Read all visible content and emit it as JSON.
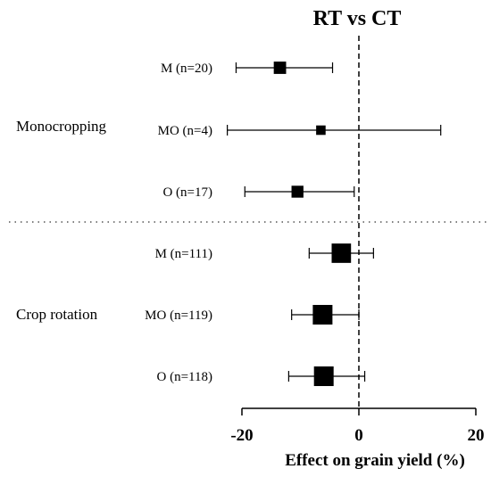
{
  "chart_data": {
    "type": "forest",
    "title": "RT vs CT",
    "xlabel": "Effect on grain yield (%)",
    "xlim": [
      -20,
      20
    ],
    "x_ticks": [
      "-20",
      "0",
      "20"
    ],
    "reference_line": 0,
    "groups": [
      {
        "name": "Monocropping",
        "rows": [
          {
            "label": "M (n=20)",
            "estimate": -13.5,
            "ci_low": -21.0,
            "ci_high": -4.5,
            "n": 20
          },
          {
            "label": "MO (n=4)",
            "estimate": -6.5,
            "ci_low": -22.5,
            "ci_high": 14.0,
            "n": 4
          },
          {
            "label": "O (n=17)",
            "estimate": -10.5,
            "ci_low": -19.5,
            "ci_high": -0.8,
            "n": 17
          }
        ]
      },
      {
        "name": "Crop rotation",
        "rows": [
          {
            "label": "M (n=111)",
            "estimate": -3.0,
            "ci_low": -8.5,
            "ci_high": 2.5,
            "n": 111
          },
          {
            "label": "MO (n=119)",
            "estimate": -6.2,
            "ci_low": -11.5,
            "ci_high": 0.0,
            "n": 119
          },
          {
            "label": "O (n=118)",
            "estimate": -6.0,
            "ci_low": -12.0,
            "ci_high": 1.0,
            "n": 118
          }
        ]
      }
    ]
  }
}
